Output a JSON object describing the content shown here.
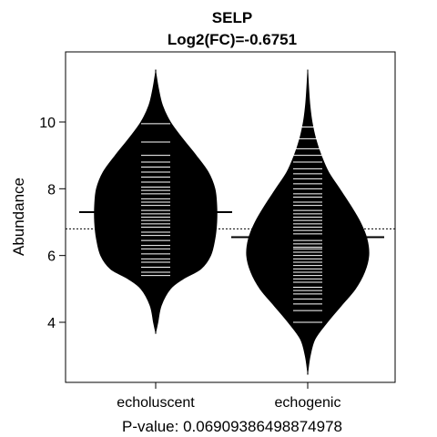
{
  "chart_data": {
    "type": "beanplot",
    "title": "SELP",
    "subtitle": "Log2(FC)=-0.6751",
    "xlabel": "P-value: 0.06909386498874978",
    "ylabel": "Abundance",
    "categories": [
      "echoluscent",
      "echogenic"
    ],
    "ylim": [
      2.2,
      12.1
    ],
    "yticks": [
      4,
      6,
      8,
      10
    ],
    "overall_mean": 6.8,
    "series": [
      {
        "name": "echoluscent",
        "mean": 7.3,
        "density_profile": [
          [
            3.7,
            0.0
          ],
          [
            4.0,
            0.035
          ],
          [
            4.5,
            0.09
          ],
          [
            5.0,
            0.24
          ],
          [
            5.3,
            0.45
          ],
          [
            5.6,
            0.74
          ],
          [
            6.0,
            0.9
          ],
          [
            6.5,
            0.97
          ],
          [
            7.0,
            1.0
          ],
          [
            7.5,
            1.0
          ],
          [
            8.0,
            0.97
          ],
          [
            8.5,
            0.86
          ],
          [
            9.0,
            0.66
          ],
          [
            9.5,
            0.44
          ],
          [
            10.0,
            0.24
          ],
          [
            10.5,
            0.11
          ],
          [
            11.0,
            0.045
          ],
          [
            11.5,
            0.0
          ]
        ],
        "observations": [
          5.4,
          5.5,
          5.65,
          5.8,
          5.9,
          6.05,
          6.2,
          6.3,
          6.45,
          6.6,
          6.7,
          6.85,
          6.95,
          7.05,
          7.15,
          7.25,
          7.35,
          7.5,
          7.6,
          7.7,
          7.85,
          7.95,
          8.05,
          8.2,
          8.35,
          8.5,
          8.65,
          8.8,
          9.0,
          9.4,
          9.95
        ]
      },
      {
        "name": "echogenic",
        "mean": 6.55,
        "density_profile": [
          [
            2.5,
            0.0
          ],
          [
            3.0,
            0.04
          ],
          [
            3.5,
            0.12
          ],
          [
            4.0,
            0.32
          ],
          [
            4.5,
            0.55
          ],
          [
            5.0,
            0.78
          ],
          [
            5.5,
            0.93
          ],
          [
            6.0,
            1.0
          ],
          [
            6.5,
            0.97
          ],
          [
            7.0,
            0.86
          ],
          [
            7.5,
            0.7
          ],
          [
            8.0,
            0.52
          ],
          [
            8.5,
            0.34
          ],
          [
            9.0,
            0.22
          ],
          [
            9.5,
            0.13
          ],
          [
            10.0,
            0.07
          ],
          [
            10.5,
            0.035
          ],
          [
            11.0,
            0.015
          ],
          [
            11.5,
            0.0
          ]
        ],
        "observations": [
          4.0,
          4.35,
          4.55,
          4.7,
          4.85,
          4.95,
          5.05,
          5.2,
          5.3,
          5.4,
          5.5,
          5.6,
          5.7,
          5.8,
          5.9,
          6.0,
          6.1,
          6.2,
          6.25,
          6.35,
          6.45,
          6.55,
          6.65,
          6.75,
          6.85,
          6.95,
          7.05,
          7.15,
          7.25,
          7.35,
          7.5,
          7.6,
          7.75,
          7.85,
          8.0,
          8.15,
          8.3,
          8.45,
          8.6,
          8.8,
          9.0,
          9.2,
          9.5,
          9.85
        ]
      }
    ]
  }
}
